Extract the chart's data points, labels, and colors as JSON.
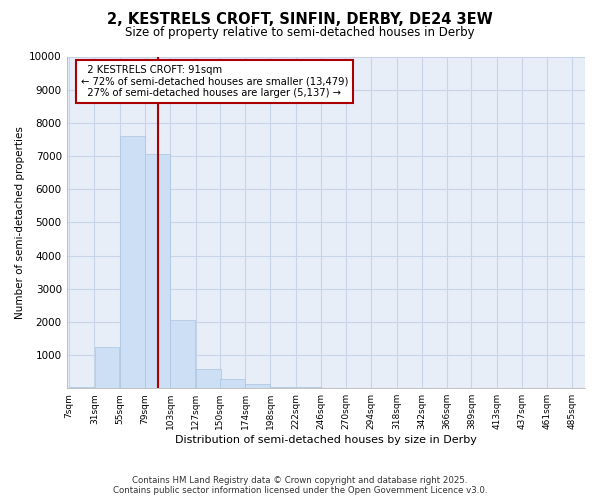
{
  "title": "2, KESTRELS CROFT, SINFIN, DERBY, DE24 3EW",
  "subtitle": "Size of property relative to semi-detached houses in Derby",
  "xlabel": "Distribution of semi-detached houses by size in Derby",
  "ylabel": "Number of semi-detached properties",
  "property_label": "2 KESTRELS CROFT: 91sqm",
  "pct_smaller": "72% of semi-detached houses are smaller (13,479)",
  "pct_larger": "27% of semi-detached houses are larger (5,137)",
  "property_size": 91,
  "bin_edges": [
    7,
    31,
    55,
    79,
    103,
    127,
    150,
    174,
    198,
    222,
    246,
    270,
    294,
    318,
    342,
    366,
    389,
    413,
    437,
    461,
    485
  ],
  "bar_heights": [
    50,
    1250,
    7600,
    7050,
    2050,
    580,
    270,
    130,
    50,
    30,
    10,
    0,
    0,
    0,
    0,
    0,
    0,
    0,
    0,
    0
  ],
  "bar_color": "#ccdff5",
  "bar_edge_color": "#aac4e0",
  "vline_color": "#aa0000",
  "vline_x": 91,
  "annotation_box_color": "#aa0000",
  "ylim": [
    0,
    10000
  ],
  "yticks": [
    0,
    1000,
    2000,
    3000,
    4000,
    5000,
    6000,
    7000,
    8000,
    9000,
    10000
  ],
  "grid_color": "#c8d4e8",
  "bg_color": "#e8eef8",
  "footnote1": "Contains HM Land Registry data © Crown copyright and database right 2025.",
  "footnote2": "Contains public sector information licensed under the Open Government Licence v3.0."
}
